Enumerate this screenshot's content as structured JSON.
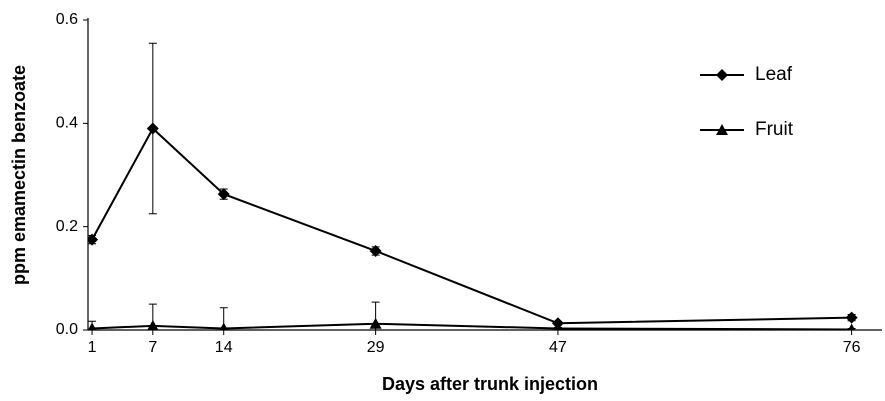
{
  "chart_data": {
    "type": "line",
    "xlabel": "Days after trunk injection",
    "ylabel": "ppm emamectin benzoate",
    "x": [
      1,
      7,
      14,
      29,
      47,
      76
    ],
    "series": [
      {
        "name": "Leaf",
        "color": "#000000",
        "marker": "diamond",
        "values": [
          0.175,
          0.39,
          0.263,
          0.153,
          0.013,
          0.024
        ],
        "errors": [
          0.008,
          0.165,
          0.01,
          0.008,
          0.003,
          0.006
        ]
      },
      {
        "name": "Fruit",
        "color": "#000000",
        "marker": "triangle",
        "values": [
          0.003,
          0.008,
          0.003,
          0.012,
          0.003,
          0.001
        ],
        "errors": [
          0.014,
          0.042,
          0.04,
          0.042,
          0.002,
          0.002
        ]
      }
    ],
    "xlim": [
      0.6,
      79
    ],
    "xticks": [
      1,
      7,
      14,
      29,
      47,
      76
    ],
    "ylim": [
      0,
      0.6
    ],
    "yticks": [
      {
        "value": 0,
        "label": "0.0"
      },
      0.2,
      0.4,
      0.6
    ],
    "legend": "upper right"
  }
}
